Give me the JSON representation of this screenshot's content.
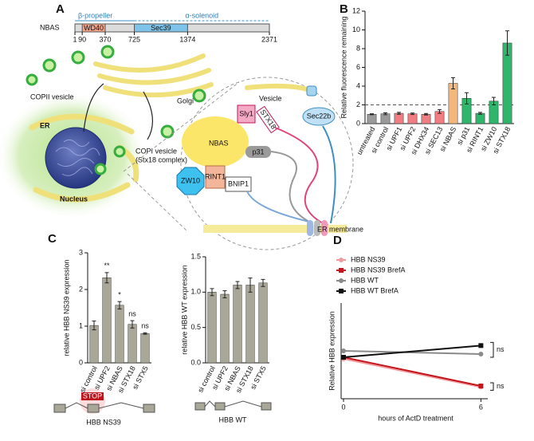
{
  "panel_a": {
    "label": "A",
    "protein": "NBAS",
    "beta": "β-propeller",
    "alpha": "α-solenoid",
    "domains": [
      "WD40",
      "Sec39"
    ],
    "positions": [
      1,
      90,
      370,
      725,
      1374,
      2371
    ],
    "labels": {
      "copii": "COPII vesicle",
      "golgi": "Golgi",
      "er": "ER",
      "nucleus": "Nucleus",
      "copi1": "COPI vesicle",
      "copi2": "(Stx18 complex)",
      "vesicle": "Vesicle",
      "sly1": "Sly1",
      "stx18": "STX18",
      "sec22b": "Sec22b",
      "nbas": "NBAS",
      "p31": "p31",
      "zw10": "ZW10",
      "rint1": "RINT1",
      "bnip1": "BNIP1",
      "er_membrane": "ER membrane"
    }
  },
  "schematics": {
    "stop": "STOP",
    "ns39": "HBB NS39",
    "wt": "HBB WT"
  },
  "chart_data": [
    {
      "type": "bar",
      "panel": "B",
      "ylabel": "Relative fluorescence remaining",
      "categories": [
        "untreated",
        "si control",
        "si UPF1",
        "si UPF2",
        "si DHX34",
        "si SEC13",
        "si NBAS",
        "si p31",
        "si RINT1",
        "si ZW10",
        "si STX18"
      ],
      "values": [
        1.0,
        1.05,
        1.1,
        1.05,
        1.0,
        1.3,
        4.3,
        2.7,
        1.1,
        2.4,
        8.6
      ],
      "errors": [
        0.05,
        0.1,
        0.1,
        0.08,
        0.08,
        0.2,
        0.6,
        0.6,
        0.1,
        0.4,
        1.3
      ],
      "colors": [
        "#9a9a9a",
        "#9a9a9a",
        "#f07d82",
        "#f07d82",
        "#f07d82",
        "#f07d82",
        "#f4b77c",
        "#2fb56c",
        "#2fb56c",
        "#2fb56c",
        "#2fb56c"
      ],
      "reference_line": 2,
      "ylim": [
        0,
        12
      ],
      "yticks": [
        0,
        2,
        4,
        6,
        8,
        10,
        12
      ]
    },
    {
      "type": "bar",
      "panel": "C",
      "ylabel": "relative HBB NS39 expression",
      "categories": [
        "si control",
        "si UPF2",
        "si NBAS",
        "si STX18",
        "si STX5"
      ],
      "values": [
        1.02,
        2.32,
        1.57,
        1.05,
        0.8
      ],
      "errors": [
        0.12,
        0.14,
        0.1,
        0.1,
        0.02
      ],
      "annotations": [
        null,
        "**",
        "*",
        "ns",
        "ns"
      ],
      "color": "#a9a797",
      "ylim": [
        0,
        3
      ],
      "yticks": [
        0,
        1,
        2,
        3
      ]
    },
    {
      "type": "bar",
      "ylabel": "relative HBB WT expression",
      "categories": [
        "si control",
        "si UPF2",
        "si NBAS",
        "si STX18",
        "si STX5"
      ],
      "values": [
        1.0,
        0.97,
        1.1,
        1.1,
        1.13
      ],
      "errors": [
        0.05,
        0.05,
        0.05,
        0.1,
        0.05
      ],
      "color": "#a9a797",
      "ylim": [
        0,
        1.5
      ],
      "yticks": [
        {
          "value": 0,
          "label": "0.0"
        },
        {
          "value": 0.5,
          "label": "0.5"
        },
        {
          "value": 1,
          "label": "1.0"
        },
        {
          "value": 1.5,
          "label": "1.5"
        }
      ]
    },
    {
      "type": "line",
      "panel": "D",
      "ylabel": "Relative HBB expression",
      "xlabel": "hours of ActD treatment",
      "x": [
        0,
        6
      ],
      "series": [
        {
          "name": "HBB NS39",
          "color": "#f29a9c",
          "values": [
            0.75,
            0.22
          ]
        },
        {
          "name": "HBB NS39 BrefA",
          "color": "#c4141c",
          "values": [
            0.78,
            0.24
          ]
        },
        {
          "name": "HBB WT",
          "color": "#8a8a8a",
          "values": [
            0.9,
            0.84
          ]
        },
        {
          "name": "HBB WT BrefA",
          "color": "#111111",
          "values": [
            0.78,
            1.0
          ]
        }
      ],
      "annotations": [
        "ns",
        "ns"
      ],
      "xlim": [
        0,
        6.3
      ],
      "xticks": [
        0,
        6
      ],
      "ylim": [
        0,
        1.8
      ]
    }
  ]
}
